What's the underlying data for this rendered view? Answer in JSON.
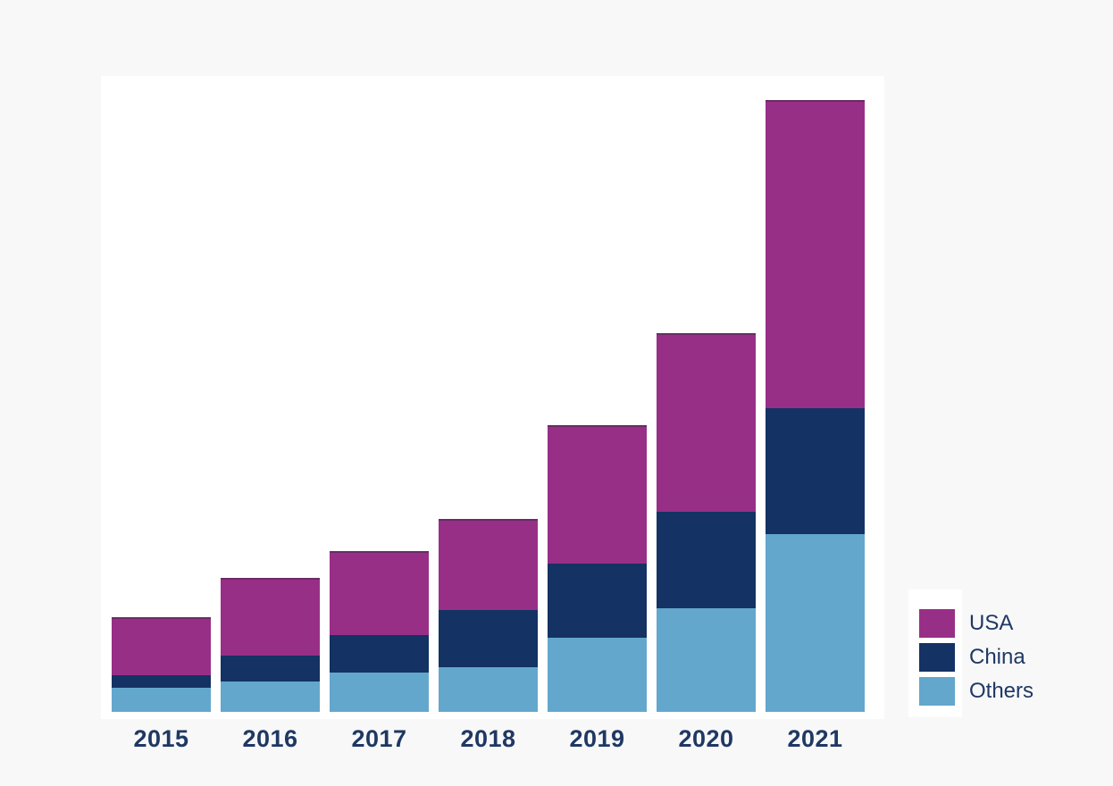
{
  "colors": {
    "background": "#f8f8f8",
    "plot_background": "#ffffff",
    "usa": "#982f87",
    "china": "#143263",
    "others": "#63a7cd",
    "axis_text": "#1f3864"
  },
  "legend": {
    "items": [
      {
        "label": "USA",
        "color": "#982f87"
      },
      {
        "label": "China",
        "color": "#143263"
      },
      {
        "label": "Others",
        "color": "#63a7cd"
      }
    ]
  },
  "chart_data": {
    "type": "bar",
    "stacked": true,
    "title": "",
    "xlabel": "",
    "ylabel": "",
    "units": "relative height (no y-axis shown in image)",
    "categories": [
      "2015",
      "2016",
      "2017",
      "2018",
      "2019",
      "2020",
      "2021"
    ],
    "series": [
      {
        "name": "USA",
        "color": "#982f87",
        "values": [
          65,
          87,
          94,
          102,
          155,
          200,
          345
        ]
      },
      {
        "name": "China",
        "color": "#143263",
        "values": [
          14,
          29,
          42,
          64,
          83,
          108,
          141
        ]
      },
      {
        "name": "Others",
        "color": "#63a7cd",
        "values": [
          27,
          34,
          44,
          50,
          83,
          116,
          199
        ]
      }
    ],
    "totals": [
      106,
      150,
      180,
      216,
      321,
      424,
      685
    ],
    "stack_order_top_to_bottom": [
      "USA",
      "China",
      "Others"
    ],
    "ylim": [
      0,
      712
    ],
    "grid": false,
    "legend_position": "right-bottom"
  }
}
